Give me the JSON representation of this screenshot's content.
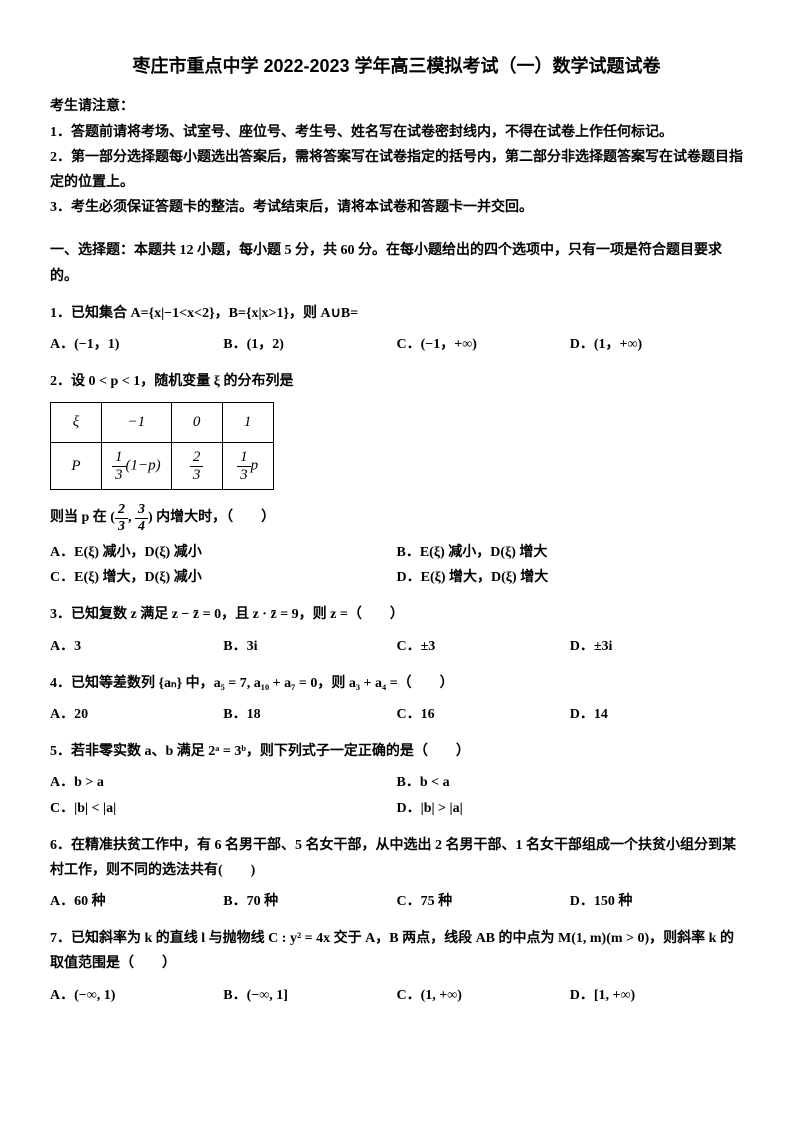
{
  "title": "枣庄市重点中学 2022-2023 学年高三模拟考试（一）数学试题试卷",
  "notice_head": "考生请注意：",
  "notice1": "1．答题前请将考场、试室号、座位号、考生号、姓名写在试卷密封线内，不得在试卷上作任何标记。",
  "notice2": "2．第一部分选择题每小题选出答案后，需将答案写在试卷指定的括号内，第二部分非选择题答案写在试卷题目指定的位置上。",
  "notice3": "3．考生必须保证答题卡的整洁。考试结束后，请将本试卷和答题卡一并交回。",
  "section1": "一、选择题：本题共 12 小题，每小题 5 分，共 60 分。在每小题给出的四个选项中，只有一项是符合题目要求的。",
  "q1": "1．已知集合 A={x|−1<x<2}，B={x|x>1}，则 A∪B=",
  "q1A": "A．(−1，1)",
  "q1B": "B．(1，2)",
  "q1C": "C．(−1，+∞)",
  "q1D": "D．(1，+∞)",
  "q2_pre": "2．设 0 < p < 1，随机变量 ξ 的分布列是",
  "tbl_xi": "ξ",
  "tbl_v1": "−1",
  "tbl_v2": "0",
  "tbl_v3": "1",
  "tbl_P": "P",
  "q2_post_a": "则当 p 在 (",
  "q2_post_b": ") 内增大时，（　　）",
  "q2A": "A．E(ξ) 减小，D(ξ) 减小",
  "q2B": "B．E(ξ) 减小，D(ξ) 增大",
  "q2C": "C．E(ξ) 增大，D(ξ) 减小",
  "q2D": "D．E(ξ) 增大，D(ξ) 增大",
  "q3": "3．已知复数 z 满足 z − z̄ = 0，且 z · z̄ = 9，则 z =（　　）",
  "q3A": "A．3",
  "q3B": "B．3i",
  "q3C": "C．±3",
  "q3D": "D．±3i",
  "q4": "4．已知等差数列 {aₙ} 中，a₅ = 7, a₁₀ + a₇ = 0，则 a₃ + a₄ =（　　）",
  "q4A": "A．20",
  "q4B": "B．18",
  "q4C": "C．16",
  "q4D": "D．14",
  "q5": "5．若非零实数 a、b 满足 2ᵃ = 3ᵇ，则下列式子一定正确的是（　　）",
  "q5A": "A．b > a",
  "q5B": "B．b < a",
  "q5C": "C．|b| < |a|",
  "q5D": "D．|b| > |a|",
  "q6": "6．在精准扶贫工作中，有 6 名男干部、5 名女干部，从中选出 2 名男干部、1 名女干部组成一个扶贫小组分到某村工作，则不同的选法共有(　　)",
  "q6A": "A．60 种",
  "q6B": "B．70 种",
  "q6C": "C．75 种",
  "q6D": "D．150 种",
  "q7": "7．已知斜率为 k 的直线 l 与抛物线 C : y² = 4x 交于 A，B 两点，线段 AB 的中点为 M(1, m)(m > 0)，则斜率 k 的取值范围是（　　）",
  "q7A": "A．(−∞, 1)",
  "q7B": "B．(−∞, 1]",
  "q7C": "C．(1, +∞)",
  "q7D": "D．[1, +∞)"
}
